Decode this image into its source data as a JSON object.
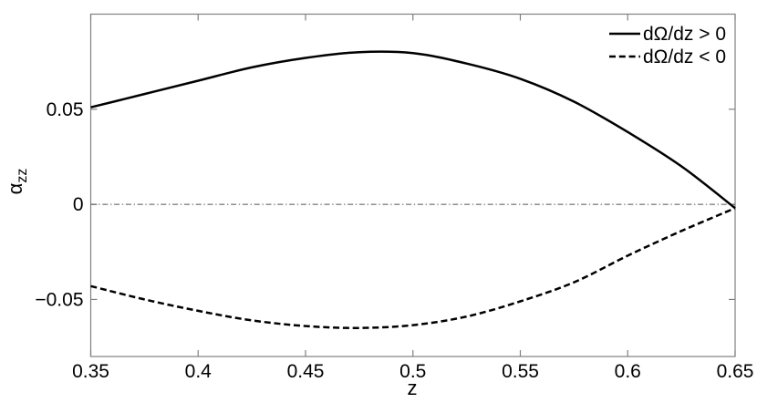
{
  "figure": {
    "background": "#ffffff",
    "axis_color": "#808080",
    "curve_color": "#000000",
    "zero_line_color": "#555555"
  },
  "chart_data": {
    "type": "line",
    "title": "",
    "xlabel": "z",
    "ylabel_base": "α",
    "ylabel_sub": "zz",
    "xlim": [
      0.35,
      0.65
    ],
    "ylim": [
      -0.08,
      0.1
    ],
    "grid": false,
    "legend_position": "top-right",
    "xticks": {
      "values": [
        0.35,
        0.4,
        0.45,
        0.5,
        0.55,
        0.6,
        0.65
      ],
      "labels": [
        "0.35",
        "0.4",
        "0.45",
        "0.5",
        "0.55",
        "0.6",
        "0.65"
      ]
    },
    "yticks": {
      "values": [
        -0.05,
        0,
        0.05
      ],
      "labels": [
        "−0.05",
        "0",
        "0.05"
      ]
    },
    "zero_reference_line": {
      "y": 0,
      "style": "dash-dot"
    },
    "series": [
      {
        "name": "dΩ/dz > 0",
        "line_style": "solid",
        "x": [
          0.35,
          0.375,
          0.4,
          0.425,
          0.45,
          0.475,
          0.5,
          0.525,
          0.55,
          0.575,
          0.6,
          0.625,
          0.65
        ],
        "y": [
          0.051,
          0.058,
          0.065,
          0.072,
          0.077,
          0.08,
          0.0795,
          0.074,
          0.066,
          0.054,
          0.038,
          0.02,
          -0.002
        ]
      },
      {
        "name": "dΩ/dz < 0",
        "line_style": "dashed",
        "x": [
          0.35,
          0.375,
          0.4,
          0.425,
          0.45,
          0.475,
          0.5,
          0.525,
          0.55,
          0.575,
          0.6,
          0.625,
          0.65
        ],
        "y": [
          -0.043,
          -0.05,
          -0.056,
          -0.061,
          -0.064,
          -0.065,
          -0.0635,
          -0.059,
          -0.051,
          -0.041,
          -0.027,
          -0.014,
          -0.002
        ]
      }
    ]
  }
}
